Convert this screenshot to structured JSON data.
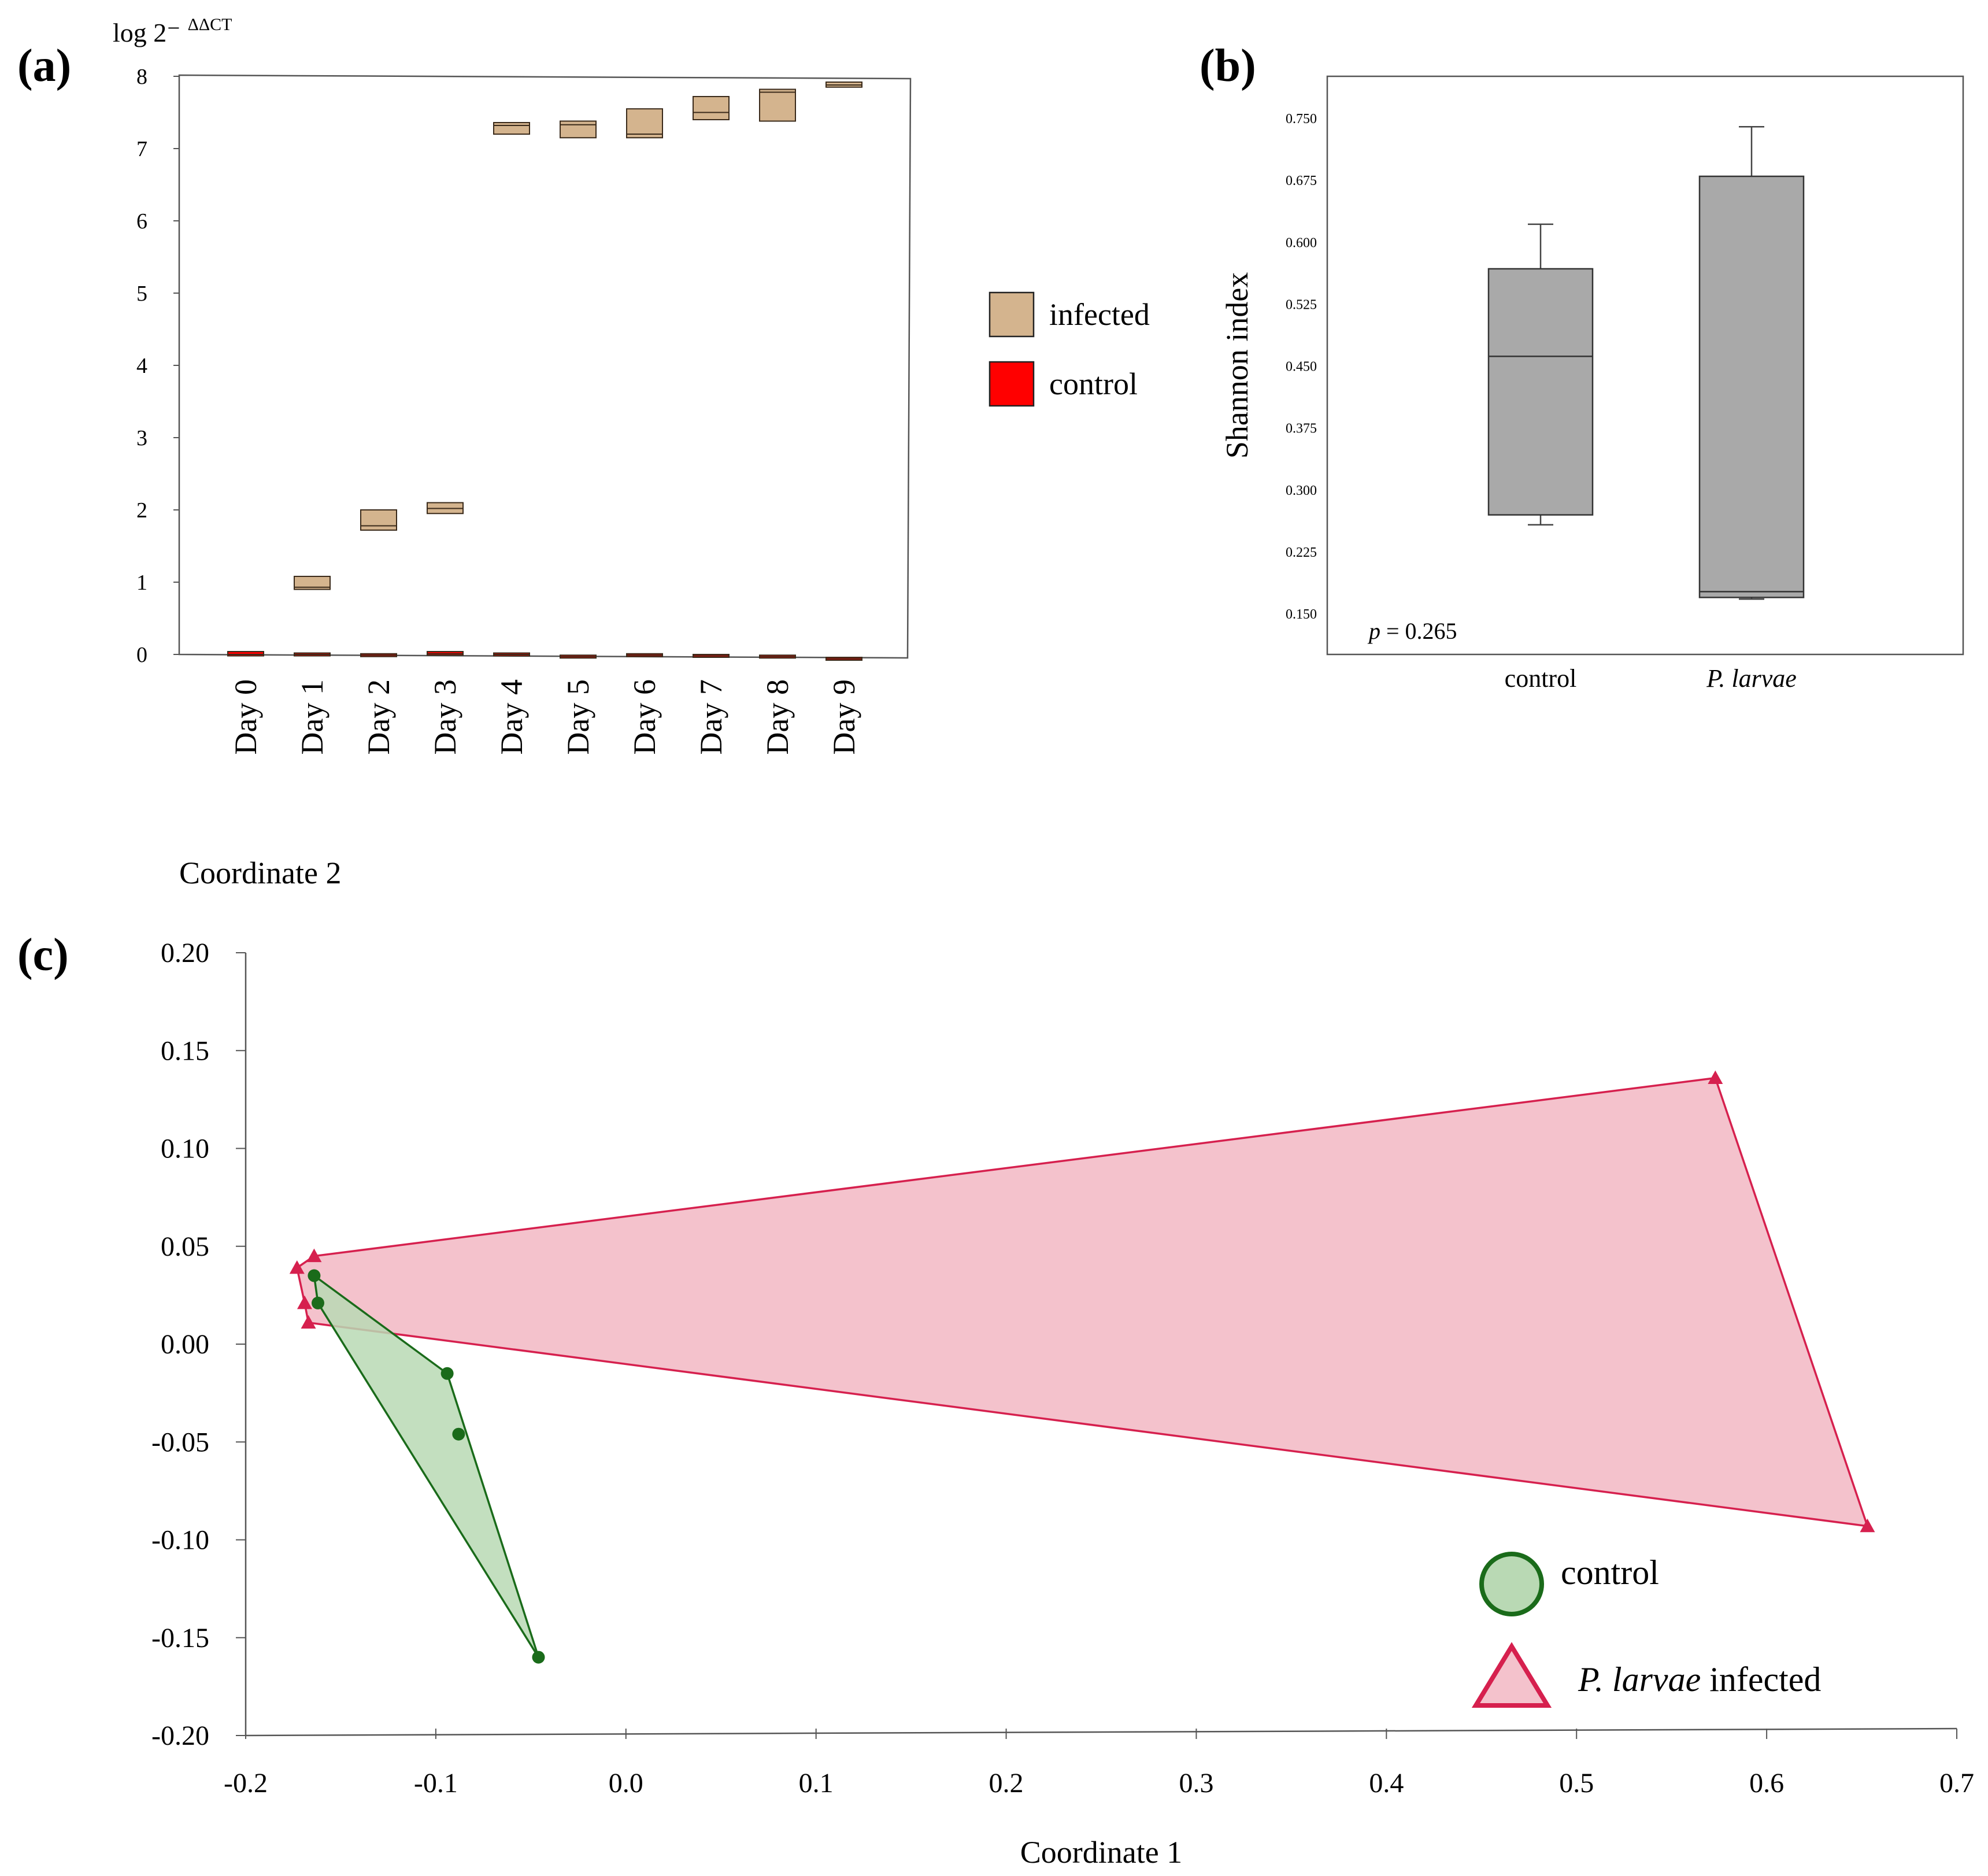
{
  "panels": {
    "a": "(a)",
    "b": "(b)",
    "c": "(c)"
  },
  "chart_data": [
    {
      "id": "a",
      "type": "box",
      "ylabel": "log 2⁻",
      "ylabel_sup": "ΔΔCT",
      "ylim": [
        0,
        8
      ],
      "yticks": [
        "0",
        "1",
        "2",
        "3",
        "4",
        "5",
        "6",
        "7",
        "8"
      ],
      "categories": [
        "Day 0",
        "Day 1",
        "Day 2",
        "Day 3",
        "Day 4",
        "Day 5",
        "Day 6",
        "Day 7",
        "Day 8",
        "Day 9"
      ],
      "series": [
        {
          "name": "infected",
          "color": "#d4b48e",
          "boxes": [
            null,
            {
              "q1": 0.9,
              "median": 0.93,
              "q3": 1.08
            },
            {
              "q1": 1.72,
              "median": 1.78,
              "q3": 2.0
            },
            {
              "q1": 1.95,
              "median": 2.02,
              "q3": 2.1
            },
            {
              "q1": 7.2,
              "median": 7.32,
              "q3": 7.36
            },
            {
              "q1": 7.15,
              "median": 7.33,
              "q3": 7.38
            },
            {
              "q1": 7.15,
              "median": 7.2,
              "q3": 7.55
            },
            {
              "q1": 7.4,
              "median": 7.5,
              "q3": 7.72
            },
            {
              "q1": 7.38,
              "median": 7.78,
              "q3": 7.82
            },
            {
              "q1": 7.85,
              "median": 7.88,
              "q3": 7.92
            }
          ]
        },
        {
          "name": "control",
          "color": "#ff0000",
          "boxes": [
            {
              "q1": -0.02,
              "median": 0.0,
              "q3": 0.04
            },
            {
              "q1": -0.02,
              "median": 0.0,
              "q3": 0.02
            },
            {
              "q1": -0.03,
              "median": -0.01,
              "q3": 0.01
            },
            {
              "q1": -0.01,
              "median": 0.01,
              "q3": 0.04
            },
            {
              "q1": -0.02,
              "median": 0.0,
              "q3": 0.02
            },
            {
              "q1": -0.05,
              "median": -0.03,
              "q3": -0.01
            },
            {
              "q1": -0.03,
              "median": -0.01,
              "q3": 0.01
            },
            {
              "q1": -0.04,
              "median": -0.02,
              "q3": 0.0
            },
            {
              "q1": -0.05,
              "median": -0.03,
              "q3": -0.01
            },
            {
              "q1": -0.08,
              "median": -0.06,
              "q3": -0.04
            }
          ]
        }
      ],
      "legend": [
        "infected",
        "control"
      ]
    },
    {
      "id": "b",
      "type": "box",
      "ylabel": "Shannon index",
      "ylim": [
        0.1,
        0.8
      ],
      "yticks": [
        "0.150",
        "0.225",
        "0.300",
        "0.375",
        "0.450",
        "0.525",
        "0.600",
        "0.675",
        "0.750"
      ],
      "categories": [
        "control",
        "P. larvae"
      ],
      "color": "#a9a9a9",
      "boxes": [
        {
          "min": 0.258,
          "q1": 0.27,
          "median": 0.462,
          "q3": 0.568,
          "max": 0.622
        },
        {
          "min": 0.168,
          "q1": 0.17,
          "median": 0.177,
          "q3": 0.68,
          "max": 0.74
        }
      ],
      "annotation_p": "p",
      "annotation_value": " = 0.265"
    },
    {
      "id": "c",
      "type": "scatter",
      "xlabel": "Coordinate 1",
      "ylabel": "Coordinate 2",
      "xlim": [
        -0.2,
        0.7
      ],
      "ylim": [
        -0.2,
        0.2
      ],
      "xticks": [
        "-0.2",
        "-0.1",
        "0.0",
        "0.1",
        "0.2",
        "0.3",
        "0.4",
        "0.5",
        "0.6",
        "0.7"
      ],
      "yticks": [
        "-0.20",
        "-0.15",
        "-0.10",
        "-0.05",
        "0.00",
        "0.05",
        "0.10",
        "0.15",
        "0.20"
      ],
      "series": [
        {
          "name": "control",
          "color": "#1a6b1a",
          "fill": "#b9d9b4",
          "marker": "circle",
          "points": [
            [
              -0.164,
              0.035
            ],
            [
              -0.162,
              0.021
            ],
            [
              -0.094,
              -0.015
            ],
            [
              -0.088,
              -0.046
            ],
            [
              -0.046,
              -0.16
            ]
          ],
          "hull": [
            [
              -0.164,
              0.035
            ],
            [
              -0.094,
              -0.015
            ],
            [
              -0.046,
              -0.16
            ],
            [
              -0.162,
              0.021
            ]
          ]
        },
        {
          "name": "P. larvae infected",
          "color": "#d6204e",
          "fill": "#f4c2cc",
          "marker": "triangle",
          "points": [
            [
              -0.164,
              0.045
            ],
            [
              -0.173,
              0.039
            ],
            [
              -0.169,
              0.021
            ],
            [
              -0.167,
              0.011
            ],
            [
              0.573,
              0.136
            ],
            [
              0.653,
              -0.093
            ]
          ],
          "hull": [
            [
              -0.164,
              0.045
            ],
            [
              0.573,
              0.136
            ],
            [
              0.653,
              -0.093
            ],
            [
              -0.167,
              0.011
            ],
            [
              -0.169,
              0.021
            ],
            [
              -0.173,
              0.039
            ]
          ]
        }
      ],
      "legend": [
        "control",
        "P. larvae infected"
      ],
      "legend_italic": "P. larvae",
      "legend_rest": " infected"
    }
  ]
}
